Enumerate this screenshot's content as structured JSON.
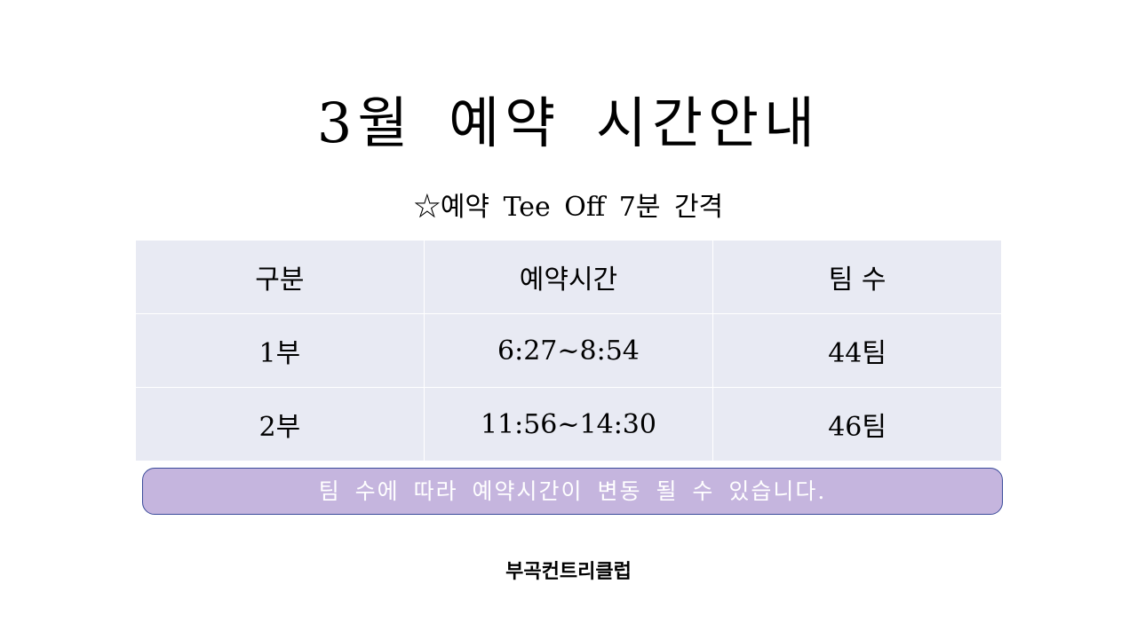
{
  "title": "3월 예약 시간안내",
  "subtitle": "☆예약 Tee Off 7분 간격",
  "table": {
    "headers": [
      "구분",
      "예약시간",
      "팀 수"
    ],
    "rows": [
      [
        "1부",
        "6:27~8:54",
        "44팀"
      ],
      [
        "2부",
        "11:56~14:30",
        "46팀"
      ]
    ]
  },
  "notice": "팀 수에 따라 예약시간이 변동 될 수 있습니다.",
  "footer": "부곡컨트리클럽",
  "colors": {
    "table_bg": "#e8eaf3",
    "banner_bg": "#c5b5de",
    "banner_border": "#3a4a9a"
  }
}
